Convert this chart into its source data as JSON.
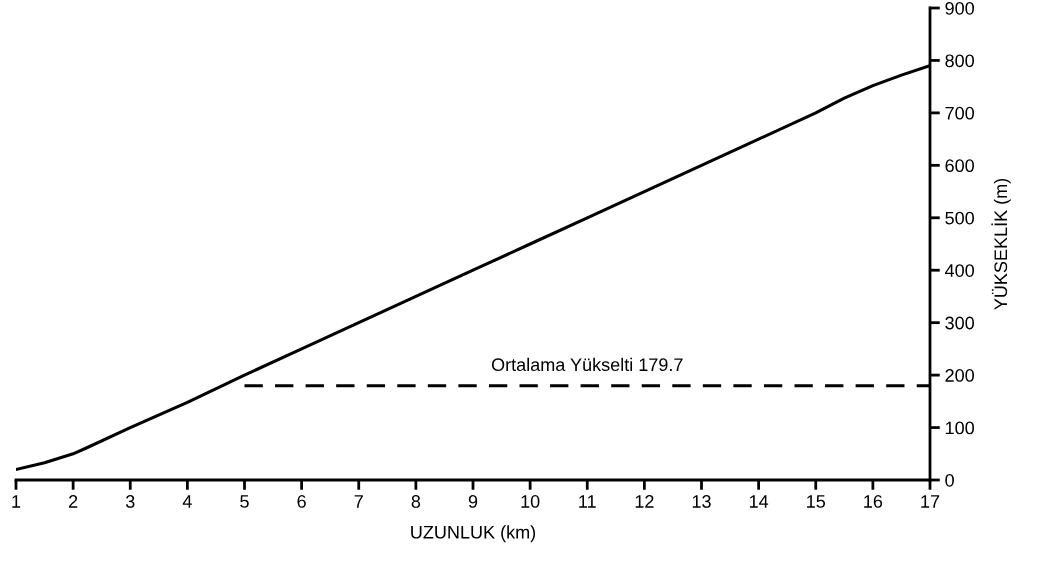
{
  "chart_data": {
    "type": "line",
    "xlabel": "UZUNLUK (km)",
    "ylabel": "YÜKSEKLİK (m)",
    "x": [
      1,
      1.5,
      2,
      2.25,
      3,
      4,
      5,
      6,
      7,
      8,
      9,
      10,
      11,
      12,
      13,
      14,
      15,
      15.5,
      16,
      16.5,
      17
    ],
    "series": [
      {
        "color": "#000000",
        "line_style": "solid",
        "values": [
          20,
          33,
          50,
          62,
          100,
          148,
          200,
          250,
          300,
          350,
          400,
          450,
          500,
          550,
          600,
          650,
          700,
          728,
          752,
          772,
          790
        ]
      },
      {
        "color": "#000000",
        "line_style": "dashed",
        "x": [
          5,
          17
        ],
        "values": [
          179.7,
          179.7
        ]
      }
    ],
    "annotations": [
      {
        "text": "Ortalama Yükselti 179.7",
        "x": 11,
        "y": 179.7
      }
    ],
    "xlim": [
      1,
      17
    ],
    "xticks": [
      1,
      2,
      3,
      4,
      5,
      6,
      7,
      8,
      9,
      10,
      11,
      12,
      13,
      14,
      15,
      16,
      17
    ],
    "ylim": [
      0,
      900
    ],
    "yticks": [
      0,
      100,
      200,
      300,
      400,
      500,
      600,
      700,
      800,
      900
    ],
    "grid": false,
    "legend": false,
    "marker": "none"
  }
}
